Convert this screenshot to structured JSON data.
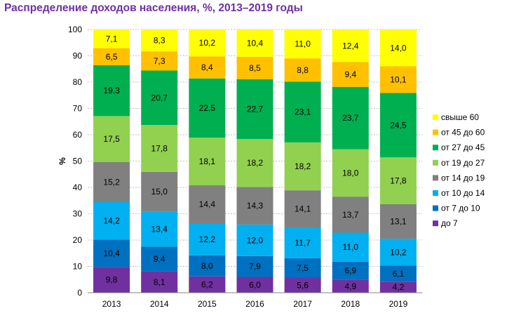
{
  "title": "Распределение доходов населения, %, 2013–2019 годы",
  "chart_data": {
    "type": "bar",
    "stacked": true,
    "title": "Распределение доходов населения, %, 2013–2019 годы",
    "ylabel": "%",
    "xlabel": "",
    "ylim": [
      0,
      100
    ],
    "yticks": [
      0,
      10,
      20,
      30,
      40,
      50,
      60,
      70,
      80,
      90,
      100
    ],
    "grid": true,
    "legend_position": "right",
    "categories": [
      "2013",
      "2014",
      "2015",
      "2016",
      "2017",
      "2018",
      "2019"
    ],
    "series": [
      {
        "name": "до 7",
        "color": "#7030a0",
        "values": [
          9.8,
          8.1,
          6.2,
          6.0,
          5.6,
          4.9,
          4.2
        ],
        "labels": [
          "9,8",
          "8,1",
          "6,2",
          "6,0",
          "5,6",
          "4,9",
          "4,2"
        ]
      },
      {
        "name": "от 7 до 10",
        "color": "#0070c0",
        "values": [
          10.4,
          9.4,
          8.0,
          7.9,
          7.5,
          6.9,
          6.1
        ],
        "labels": [
          "10,4",
          "9,4",
          "8,0",
          "7,9",
          "7,5",
          "6,9",
          "6,1"
        ]
      },
      {
        "name": "от 10 до 14",
        "color": "#00b0f0",
        "values": [
          14.2,
          13.4,
          12.2,
          12.0,
          11.7,
          11.0,
          10.2
        ],
        "labels": [
          "14,2",
          "13,4",
          "12,2",
          "12,0",
          "11,7",
          "11,0",
          "10,2"
        ]
      },
      {
        "name": "от 14 до 19",
        "color": "#808080",
        "values": [
          15.2,
          15.0,
          14.4,
          14.3,
          14.1,
          13.7,
          13.1
        ],
        "labels": [
          "15,2",
          "15,0",
          "14,4",
          "14,3",
          "14,1",
          "13,7",
          "13,1"
        ]
      },
      {
        "name": "от 19 до 27",
        "color": "#92d050",
        "values": [
          17.5,
          17.8,
          18.1,
          18.2,
          18.2,
          18.0,
          17.8
        ],
        "labels": [
          "17,5",
          "17,8",
          "18,1",
          "18,2",
          "18,2",
          "18,0",
          "17,8"
        ]
      },
      {
        "name": "от 27 до 45",
        "color": "#00b050",
        "values": [
          19.3,
          20.7,
          22.5,
          22.7,
          23.1,
          23.7,
          24.5
        ],
        "labels": [
          "19,3",
          "20,7",
          "22,5",
          "22,7",
          "23,1",
          "23,7",
          "24,5"
        ]
      },
      {
        "name": "от 45 до 60",
        "color": "#ffc000",
        "values": [
          6.5,
          7.3,
          8.4,
          8.5,
          8.8,
          9.4,
          10.1
        ],
        "labels": [
          "6,5",
          "7,3",
          "8,4",
          "8,5",
          "8,8",
          "9,4",
          "10,1"
        ]
      },
      {
        "name": "свыше 60",
        "color": "#ffff00",
        "values": [
          7.1,
          8.3,
          10.2,
          10.4,
          11.0,
          12.4,
          14.0
        ],
        "labels": [
          "7,1",
          "8,3",
          "10,2",
          "10,4",
          "11,0",
          "12,4",
          "14,0"
        ]
      }
    ]
  }
}
